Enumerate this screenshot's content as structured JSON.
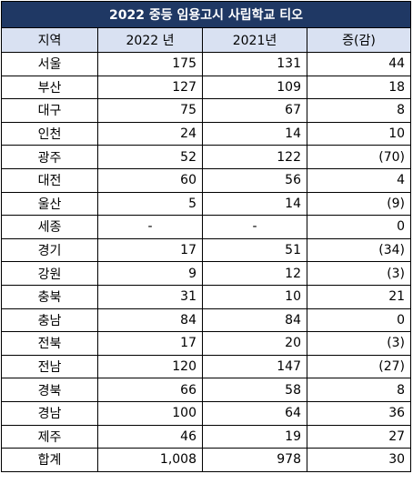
{
  "title": "2022 중등 임용고시 사립학교 티오",
  "headers": [
    "지역",
    "2022 년",
    "2021년",
    "증(감)"
  ],
  "rows": [
    {
      "region": "서울",
      "y2022": "175",
      "y2021": "131",
      "change": "44",
      "negative": false
    },
    {
      "region": "부산",
      "y2022": "127",
      "y2021": "109",
      "change": "18",
      "negative": false
    },
    {
      "region": "대구",
      "y2022": "75",
      "y2021": "67",
      "change": "8",
      "negative": false
    },
    {
      "region": "인천",
      "y2022": "24",
      "y2021": "14",
      "change": "10",
      "negative": false
    },
    {
      "region": "광주",
      "y2022": "52",
      "y2021": "122",
      "change": "(70)",
      "negative": true
    },
    {
      "region": "대전",
      "y2022": "60",
      "y2021": "56",
      "change": "4",
      "negative": false
    },
    {
      "region": "울산",
      "y2022": "5",
      "y2021": "14",
      "change": "(9)",
      "negative": true
    },
    {
      "region": "세종",
      "y2022": "-",
      "y2021": "-",
      "change": "0",
      "negative": false
    },
    {
      "region": "경기",
      "y2022": "17",
      "y2021": "51",
      "change": "(34)",
      "negative": true
    },
    {
      "region": "강원",
      "y2022": "9",
      "y2021": "12",
      "change": "(3)",
      "negative": true
    },
    {
      "region": "충북",
      "y2022": "31",
      "y2021": "10",
      "change": "21",
      "negative": false
    },
    {
      "region": "충남",
      "y2022": "84",
      "y2021": "84",
      "change": "0",
      "negative": false
    },
    {
      "region": "전북",
      "y2022": "17",
      "y2021": "20",
      "change": "(3)",
      "negative": true
    },
    {
      "region": "전남",
      "y2022": "120",
      "y2021": "147",
      "change": "(27)",
      "negative": true
    },
    {
      "region": "경북",
      "y2022": "66",
      "y2021": "58",
      "change": "8",
      "negative": false
    },
    {
      "region": "경남",
      "y2022": "100",
      "y2021": "64",
      "change": "36",
      "negative": false
    },
    {
      "region": "제주",
      "y2022": "46",
      "y2021": "19",
      "change": "27",
      "negative": false
    },
    {
      "region": "합계",
      "y2022": "1,008",
      "y2021": "978",
      "change": "30",
      "negative": false
    }
  ],
  "colors": {
    "title_bg": "#1f3864",
    "header_bg": "#d9e1f2",
    "negative_text": "#ff0000"
  }
}
